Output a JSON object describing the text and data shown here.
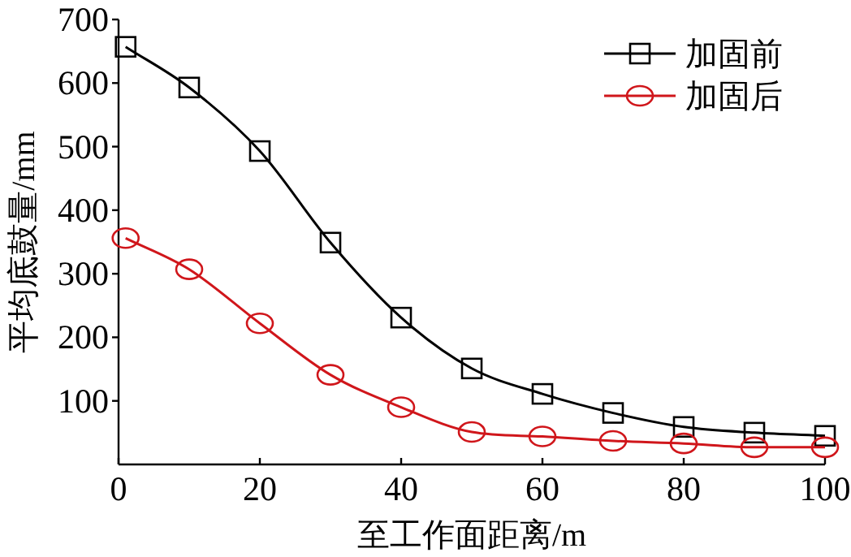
{
  "chart_data": {
    "type": "line",
    "xlabel": "至工作面距离/m",
    "ylabel": "平均底鼓量/mm",
    "x": [
      1,
      10,
      20,
      30,
      40,
      50,
      60,
      70,
      80,
      90,
      100
    ],
    "series": [
      {
        "name": "加固前",
        "color": "#000000",
        "marker": "square",
        "values": [
          657,
          593,
          493,
          349,
          231,
          151,
          111,
          81,
          59,
          50,
          45
        ]
      },
      {
        "name": "加固后",
        "color": "#d0161b",
        "marker": "circle",
        "values": [
          356,
          307,
          222,
          141,
          90,
          51,
          44,
          37,
          33,
          27,
          27
        ]
      }
    ],
    "xlim": [
      0,
      100
    ],
    "xticks": [
      0,
      20,
      40,
      60,
      80,
      100
    ],
    "ylim": [
      0,
      700
    ],
    "yticks": [
      100,
      200,
      300,
      400,
      500,
      600,
      700
    ],
    "legend": "top right",
    "grid": false,
    "line_style": "solid"
  }
}
